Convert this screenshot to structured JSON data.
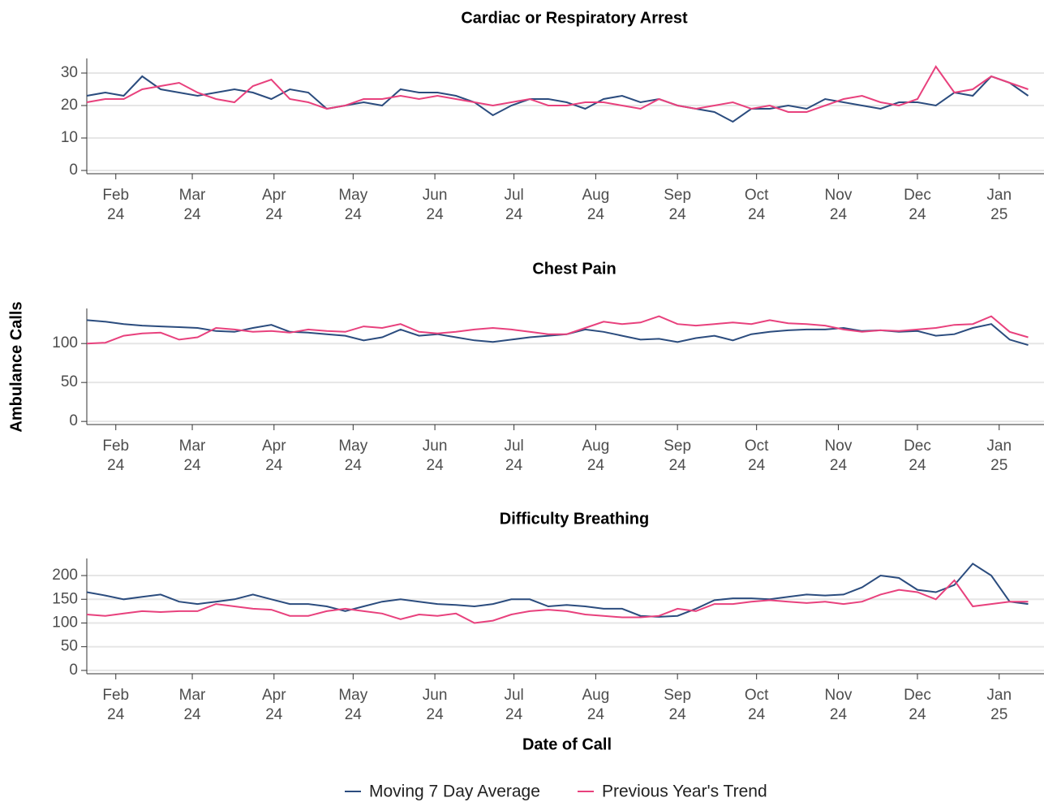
{
  "chart_data": [
    {
      "type": "line",
      "title": "Cardiac or Respiratory Arrest",
      "grid": true,
      "x": [
        0,
        7,
        14,
        21,
        28,
        35,
        42,
        49,
        56,
        63,
        70,
        77,
        84,
        91,
        98,
        105,
        112,
        119,
        126,
        133,
        140,
        147,
        154,
        161,
        168,
        175,
        182,
        189,
        196,
        203,
        210,
        217,
        224,
        231,
        238,
        245,
        252,
        259,
        266,
        273,
        280,
        287,
        294,
        301,
        308,
        315,
        322,
        329,
        336,
        343,
        350,
        357
      ],
      "xlim": [
        0,
        363
      ],
      "ylim": [
        -1,
        34.5
      ],
      "yticks": [
        0,
        10,
        20,
        30
      ],
      "xticks": [
        {
          "value": 11,
          "label": [
            "Feb",
            "24"
          ]
        },
        {
          "value": 40,
          "label": [
            "Mar",
            "24"
          ]
        },
        {
          "value": 71,
          "label": [
            "Apr",
            "24"
          ]
        },
        {
          "value": 101,
          "label": [
            "May",
            "24"
          ]
        },
        {
          "value": 132,
          "label": [
            "Jun",
            "24"
          ]
        },
        {
          "value": 162,
          "label": [
            "Jul",
            "24"
          ]
        },
        {
          "value": 193,
          "label": [
            "Aug",
            "24"
          ]
        },
        {
          "value": 224,
          "label": [
            "Sep",
            "24"
          ]
        },
        {
          "value": 254,
          "label": [
            "Oct",
            "24"
          ]
        },
        {
          "value": 285,
          "label": [
            "Nov",
            "24"
          ]
        },
        {
          "value": 315,
          "label": [
            "Dec",
            "24"
          ]
        },
        {
          "value": 346,
          "label": [
            "Jan",
            "25"
          ]
        }
      ],
      "series": [
        {
          "name": "Moving 7 Day Average",
          "color": "#2b4c7e",
          "values": [
            23,
            24,
            23,
            29,
            25,
            24,
            23,
            24,
            25,
            24,
            22,
            25,
            24,
            19,
            20,
            21,
            20,
            25,
            24,
            24,
            23,
            21,
            17,
            20,
            22,
            22,
            21,
            19,
            22,
            23,
            21,
            22,
            20,
            19,
            18,
            15,
            19,
            19,
            20,
            19,
            22,
            21,
            20,
            19,
            21,
            21,
            20,
            24,
            23,
            29,
            27,
            23
          ]
        },
        {
          "name": "Previous Year's Trend",
          "color": "#e8417d",
          "values": [
            21,
            22,
            22,
            25,
            26,
            27,
            24,
            22,
            21,
            26,
            28,
            22,
            21,
            19,
            20,
            22,
            22,
            23,
            22,
            23,
            22,
            21,
            20,
            21,
            22,
            20,
            20,
            21,
            21,
            20,
            19,
            22,
            20,
            19,
            20,
            21,
            19,
            20,
            18,
            18,
            20,
            22,
            23,
            21,
            20,
            22,
            32,
            24,
            25,
            29,
            27,
            25
          ]
        }
      ]
    },
    {
      "type": "line",
      "title": "Chest Pain",
      "ylabel": "Ambulance Calls",
      "grid": true,
      "x": [
        0,
        7,
        14,
        21,
        28,
        35,
        42,
        49,
        56,
        63,
        70,
        77,
        84,
        91,
        98,
        105,
        112,
        119,
        126,
        133,
        140,
        147,
        154,
        161,
        168,
        175,
        182,
        189,
        196,
        203,
        210,
        217,
        224,
        231,
        238,
        245,
        252,
        259,
        266,
        273,
        280,
        287,
        294,
        301,
        308,
        315,
        322,
        329,
        336,
        343,
        350,
        357
      ],
      "xlim": [
        0,
        363
      ],
      "ylim": [
        -4,
        145
      ],
      "yticks": [
        0,
        50,
        100
      ],
      "xticks": [
        {
          "value": 11,
          "label": [
            "Feb",
            "24"
          ]
        },
        {
          "value": 40,
          "label": [
            "Mar",
            "24"
          ]
        },
        {
          "value": 71,
          "label": [
            "Apr",
            "24"
          ]
        },
        {
          "value": 101,
          "label": [
            "May",
            "24"
          ]
        },
        {
          "value": 132,
          "label": [
            "Jun",
            "24"
          ]
        },
        {
          "value": 162,
          "label": [
            "Jul",
            "24"
          ]
        },
        {
          "value": 193,
          "label": [
            "Aug",
            "24"
          ]
        },
        {
          "value": 224,
          "label": [
            "Sep",
            "24"
          ]
        },
        {
          "value": 254,
          "label": [
            "Oct",
            "24"
          ]
        },
        {
          "value": 285,
          "label": [
            "Nov",
            "24"
          ]
        },
        {
          "value": 315,
          "label": [
            "Dec",
            "24"
          ]
        },
        {
          "value": 346,
          "label": [
            "Jan",
            "25"
          ]
        }
      ],
      "series": [
        {
          "name": "Moving 7 Day Average",
          "color": "#2b4c7e",
          "values": [
            130,
            128,
            125,
            123,
            122,
            121,
            120,
            116,
            115,
            120,
            124,
            115,
            114,
            112,
            110,
            104,
            108,
            118,
            110,
            112,
            108,
            104,
            102,
            105,
            108,
            110,
            112,
            118,
            115,
            110,
            105,
            106,
            102,
            107,
            110,
            104,
            112,
            115,
            117,
            118,
            118,
            120,
            116,
            117,
            115,
            116,
            110,
            112,
            120,
            125,
            105,
            98
          ]
        },
        {
          "name": "Previous Year's Trend",
          "color": "#e8417d",
          "values": [
            100,
            101,
            110,
            113,
            114,
            105,
            108,
            120,
            118,
            115,
            116,
            114,
            118,
            116,
            115,
            122,
            120,
            125,
            115,
            113,
            115,
            118,
            120,
            118,
            115,
            112,
            112,
            120,
            128,
            125,
            127,
            135,
            125,
            123,
            125,
            127,
            125,
            130,
            126,
            125,
            123,
            118,
            115,
            117,
            116,
            118,
            120,
            124,
            125,
            135,
            115,
            108
          ]
        }
      ]
    },
    {
      "type": "line",
      "title": "Difficulty Breathing",
      "xlabel": "Date of Call",
      "grid": true,
      "x": [
        0,
        7,
        14,
        21,
        28,
        35,
        42,
        49,
        56,
        63,
        70,
        77,
        84,
        91,
        98,
        105,
        112,
        119,
        126,
        133,
        140,
        147,
        154,
        161,
        168,
        175,
        182,
        189,
        196,
        203,
        210,
        217,
        224,
        231,
        238,
        245,
        252,
        259,
        266,
        273,
        280,
        287,
        294,
        301,
        308,
        315,
        322,
        329,
        336,
        343,
        350,
        357
      ],
      "xlim": [
        0,
        363
      ],
      "ylim": [
        -7,
        236
      ],
      "yticks": [
        0,
        50,
        100,
        150,
        200
      ],
      "xticks": [
        {
          "value": 11,
          "label": [
            "Feb",
            "24"
          ]
        },
        {
          "value": 40,
          "label": [
            "Mar",
            "24"
          ]
        },
        {
          "value": 71,
          "label": [
            "Apr",
            "24"
          ]
        },
        {
          "value": 101,
          "label": [
            "May",
            "24"
          ]
        },
        {
          "value": 132,
          "label": [
            "Jun",
            "24"
          ]
        },
        {
          "value": 162,
          "label": [
            "Jul",
            "24"
          ]
        },
        {
          "value": 193,
          "label": [
            "Aug",
            "24"
          ]
        },
        {
          "value": 224,
          "label": [
            "Sep",
            "24"
          ]
        },
        {
          "value": 254,
          "label": [
            "Oct",
            "24"
          ]
        },
        {
          "value": 285,
          "label": [
            "Nov",
            "24"
          ]
        },
        {
          "value": 315,
          "label": [
            "Dec",
            "24"
          ]
        },
        {
          "value": 346,
          "label": [
            "Jan",
            "25"
          ]
        }
      ],
      "series": [
        {
          "name": "Moving 7 Day Average",
          "color": "#2b4c7e",
          "values": [
            165,
            158,
            150,
            155,
            160,
            145,
            140,
            145,
            150,
            160,
            150,
            140,
            140,
            135,
            125,
            135,
            145,
            150,
            145,
            140,
            138,
            135,
            140,
            150,
            150,
            135,
            138,
            135,
            130,
            130,
            115,
            113,
            115,
            130,
            148,
            152,
            152,
            150,
            155,
            160,
            158,
            160,
            175,
            200,
            195,
            170,
            165,
            180,
            225,
            200,
            145,
            140
          ]
        },
        {
          "name": "Previous Year's Trend",
          "color": "#e8417d",
          "values": [
            118,
            115,
            120,
            125,
            123,
            125,
            125,
            140,
            135,
            130,
            128,
            115,
            115,
            125,
            130,
            125,
            120,
            108,
            118,
            115,
            120,
            100,
            105,
            118,
            125,
            128,
            125,
            118,
            115,
            112,
            112,
            115,
            130,
            125,
            140,
            140,
            145,
            148,
            145,
            142,
            145,
            140,
            145,
            160,
            170,
            165,
            150,
            190,
            135,
            140,
            145,
            145
          ]
        }
      ]
    }
  ]
}
